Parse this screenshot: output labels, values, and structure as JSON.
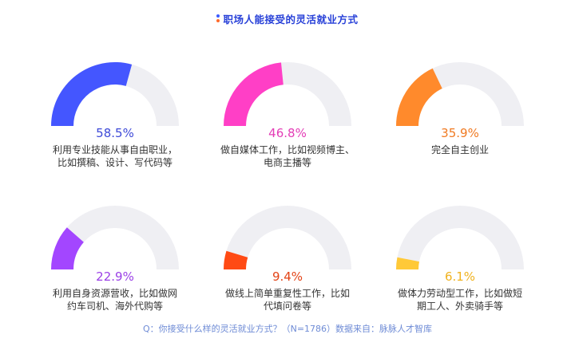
{
  "title": "职场人能接受的灵活就业方式",
  "title_dot_colors": [
    "#3b5bff",
    "#ff6a2a"
  ],
  "track_color": "#efeff3",
  "footer": "Q：你接受什么样的灵活就业方式？（N=1786）数据来自：脉脉人才智库",
  "chart_data": {
    "type": "gauge",
    "title": "职场人能接受的灵活就业方式",
    "xlabel": "",
    "ylabel": "",
    "ylim": [
      0,
      100
    ],
    "unit": "%",
    "items": [
      {
        "value": 58.5,
        "label": "58.5%",
        "desc": [
          "利用专业技能从事自由职业，",
          "比如撰稿、设计、写代码等"
        ],
        "color": "#4456ff",
        "label_color": "#3e4ad8"
      },
      {
        "value": 46.8,
        "label": "46.8%",
        "desc": [
          "做自媒体工作，比如视频博主、",
          "电商主播等"
        ],
        "color": "#ff3fc6",
        "label_color": "#e33db6"
      },
      {
        "value": 35.9,
        "label": "35.9%",
        "desc": [
          "完全自主创业"
        ],
        "color": "#ff8a2c",
        "label_color": "#f07a22"
      },
      {
        "value": 22.9,
        "label": "22.9%",
        "desc": [
          "利用自身资源营收，比如做网",
          "约车司机、海外代购等"
        ],
        "color": "#a346ff",
        "label_color": "#9a3fe6"
      },
      {
        "value": 9.4,
        "label": "9.4%",
        "desc": [
          "做线上简单重复性工作，比如",
          "代填问卷等"
        ],
        "color": "#ff4a14",
        "label_color": "#e34316"
      },
      {
        "value": 6.1,
        "label": "6.1%",
        "desc": [
          "做体力劳动型工作，比如做短",
          "期工人、外卖骑手等"
        ],
        "color": "#ffc938",
        "label_color": "#f0b21e"
      }
    ]
  }
}
